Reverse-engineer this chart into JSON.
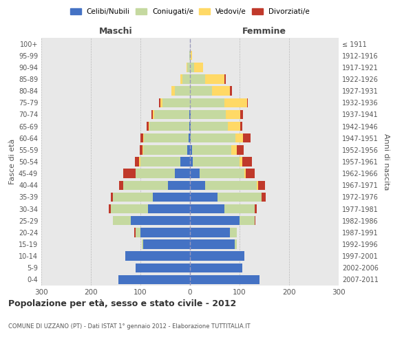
{
  "age_groups": [
    "0-4",
    "5-9",
    "10-14",
    "15-19",
    "20-24",
    "25-29",
    "30-34",
    "35-39",
    "40-44",
    "45-49",
    "50-54",
    "55-59",
    "60-64",
    "65-69",
    "70-74",
    "75-79",
    "80-84",
    "85-89",
    "90-94",
    "95-99",
    "100+"
  ],
  "birth_years": [
    "2007-2011",
    "2002-2006",
    "1997-2001",
    "1992-1996",
    "1987-1991",
    "1982-1986",
    "1977-1981",
    "1972-1976",
    "1967-1971",
    "1962-1966",
    "1957-1961",
    "1952-1956",
    "1947-1951",
    "1942-1946",
    "1937-1941",
    "1932-1936",
    "1927-1931",
    "1922-1926",
    "1917-1921",
    "1912-1916",
    "≤ 1911"
  ],
  "male": {
    "celibi": [
      145,
      110,
      130,
      95,
      100,
      120,
      85,
      75,
      45,
      30,
      20,
      5,
      3,
      2,
      2,
      0,
      0,
      0,
      0,
      0,
      0
    ],
    "coniugati": [
      0,
      0,
      0,
      2,
      10,
      35,
      75,
      80,
      90,
      80,
      80,
      90,
      90,
      80,
      70,
      55,
      30,
      15,
      5,
      1,
      0
    ],
    "vedovi": [
      0,
      0,
      0,
      0,
      0,
      0,
      0,
      0,
      0,
      0,
      3,
      1,
      2,
      2,
      3,
      5,
      8,
      5,
      2,
      0,
      0
    ],
    "divorziati": [
      0,
      0,
      0,
      0,
      2,
      0,
      4,
      5,
      8,
      25,
      8,
      5,
      5,
      3,
      3,
      2,
      0,
      0,
      0,
      0,
      0
    ]
  },
  "female": {
    "nubili": [
      140,
      105,
      110,
      90,
      80,
      100,
      70,
      55,
      30,
      20,
      5,
      4,
      2,
      2,
      2,
      0,
      0,
      0,
      0,
      0,
      0
    ],
    "coniugate": [
      0,
      0,
      0,
      5,
      15,
      30,
      60,
      90,
      105,
      90,
      95,
      80,
      90,
      75,
      70,
      70,
      45,
      30,
      8,
      2,
      0
    ],
    "vedove": [
      0,
      0,
      0,
      0,
      0,
      0,
      0,
      0,
      2,
      3,
      5,
      10,
      15,
      25,
      30,
      45,
      35,
      40,
      18,
      2,
      0
    ],
    "divorziate": [
      0,
      0,
      0,
      0,
      0,
      2,
      5,
      8,
      14,
      18,
      20,
      14,
      15,
      4,
      5,
      2,
      5,
      2,
      0,
      0,
      0
    ]
  },
  "colors": {
    "celibi": "#4472C4",
    "coniugati": "#C5D9A0",
    "vedovi": "#FFD966",
    "divorziati": "#C0392B"
  },
  "xlim": 300,
  "title": "Popolazione per età, sesso e stato civile - 2012",
  "subtitle": "COMUNE DI UZZANO (PT) - Dati ISTAT 1° gennaio 2012 - Elaborazione TUTTITALIA.IT",
  "ylabel_left": "Fasce di età",
  "ylabel_right": "Anni di nascita",
  "xlabel_left": "Maschi",
  "xlabel_right": "Femmine",
  "bg_color": "#efefef",
  "grid_color": "#cccccc",
  "plot_bg": "#e8e8e8"
}
